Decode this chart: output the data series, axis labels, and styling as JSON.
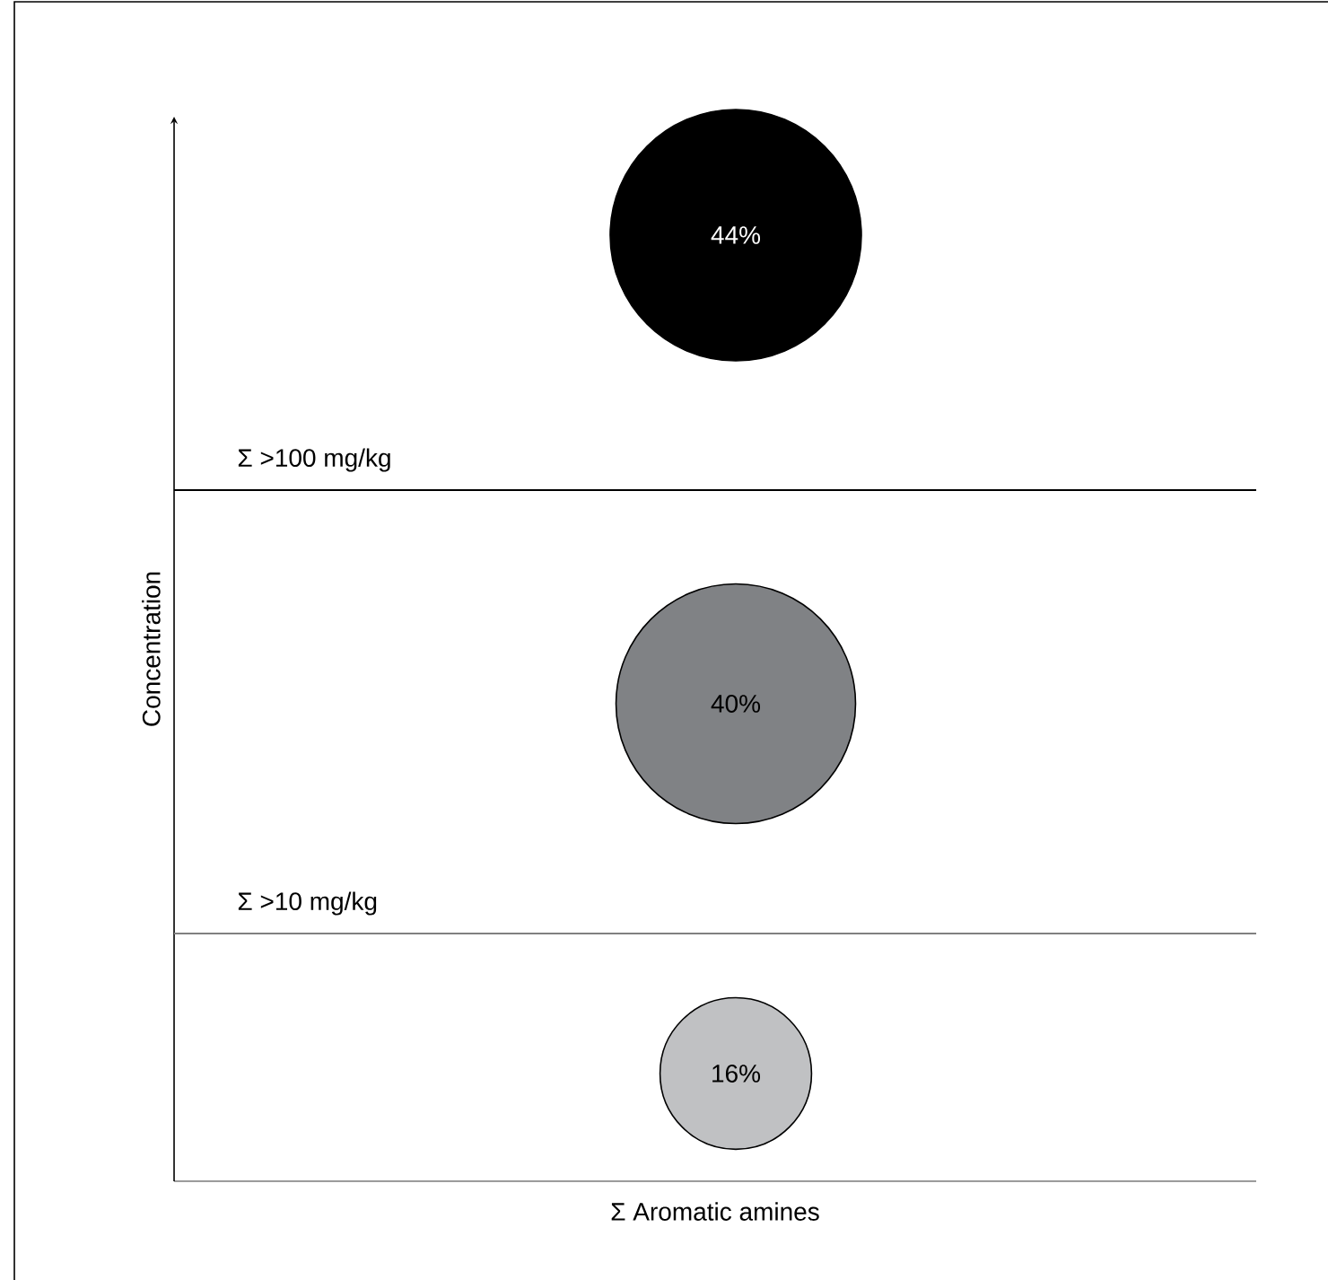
{
  "chart_data": {
    "type": "other",
    "xlabel": "Σ Aromatic amines",
    "ylabel": "Concentration",
    "categories": [
      "Σ >100 mg/kg",
      "Σ >10 mg/kg",
      null
    ],
    "values": [
      44,
      40,
      16
    ],
    "colors": [
      "#000000",
      "#808285",
      "#c0c1c3"
    ],
    "value_labels": [
      "44%",
      "40%",
      "16%"
    ]
  }
}
